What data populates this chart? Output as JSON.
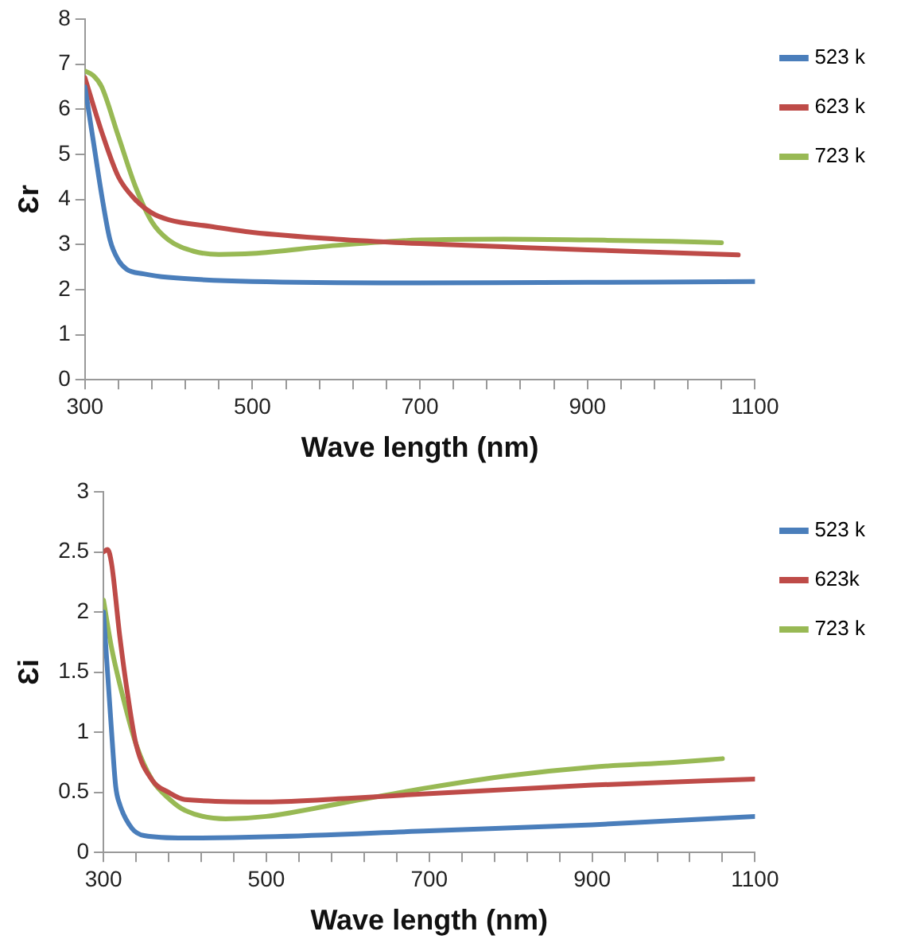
{
  "chart_data": [
    {
      "type": "line",
      "xlabel": "Wave length (nm)",
      "ylabel": "Ɛr",
      "xlim": [
        300,
        1100
      ],
      "xticks": [
        300,
        {
          "value": 340,
          "label": null
        },
        {
          "value": 380,
          "label": null
        },
        {
          "value": 420,
          "label": null
        },
        {
          "value": 460,
          "label": null
        },
        500,
        {
          "value": 540,
          "label": null
        },
        {
          "value": 580,
          "label": null
        },
        {
          "value": 620,
          "label": null
        },
        {
          "value": 660,
          "label": null
        },
        700,
        {
          "value": 740,
          "label": null
        },
        {
          "value": 780,
          "label": null
        },
        {
          "value": 820,
          "label": null
        },
        {
          "value": 860,
          "label": null
        },
        900,
        {
          "value": 940,
          "label": null
        },
        {
          "value": 980,
          "label": null
        },
        {
          "value": 1020,
          "label": null
        },
        {
          "value": 1060,
          "label": null
        },
        1100
      ],
      "ylim": [
        0,
        8
      ],
      "yticks": [
        0,
        1,
        2,
        3,
        4,
        5,
        6,
        7,
        8
      ],
      "grid": false,
      "legend": "right",
      "marker": "none",
      "line_style": "solid",
      "series": [
        {
          "name": "523 k",
          "color": "#4a7ebb",
          "x": [
            300,
            310,
            320,
            330,
            340,
            350,
            370,
            400,
            500,
            700,
            900,
            1100
          ],
          "values": [
            6.5,
            5.3,
            4.1,
            3.1,
            2.65,
            2.45,
            2.35,
            2.27,
            2.18,
            2.15,
            2.16,
            2.18
          ]
        },
        {
          "name": "623 k",
          "color": "#be4b48",
          "x": [
            300,
            320,
            340,
            360,
            380,
            400,
            450,
            500,
            600,
            700,
            800,
            900,
            1000,
            1080
          ],
          "values": [
            6.7,
            5.5,
            4.5,
            4.0,
            3.7,
            3.55,
            3.4,
            3.27,
            3.12,
            3.02,
            2.95,
            2.88,
            2.82,
            2.77
          ]
        },
        {
          "name": "723 k",
          "color": "#98b954",
          "x": [
            300,
            310,
            320,
            340,
            360,
            380,
            400,
            430,
            460,
            500,
            600,
            700,
            800,
            900,
            1000,
            1060
          ],
          "values": [
            6.85,
            6.75,
            6.5,
            5.4,
            4.3,
            3.5,
            3.1,
            2.85,
            2.78,
            2.8,
            2.98,
            3.1,
            3.12,
            3.1,
            3.07,
            3.04
          ]
        }
      ]
    },
    {
      "type": "line",
      "xlabel": "Wave length (nm)",
      "ylabel": "Ɛi",
      "xlim": [
        300,
        1100
      ],
      "xticks": [
        300,
        {
          "value": 340,
          "label": null
        },
        {
          "value": 380,
          "label": null
        },
        {
          "value": 420,
          "label": null
        },
        {
          "value": 460,
          "label": null
        },
        500,
        {
          "value": 540,
          "label": null
        },
        {
          "value": 580,
          "label": null
        },
        {
          "value": 620,
          "label": null
        },
        {
          "value": 660,
          "label": null
        },
        700,
        {
          "value": 740,
          "label": null
        },
        {
          "value": 780,
          "label": null
        },
        {
          "value": 820,
          "label": null
        },
        {
          "value": 860,
          "label": null
        },
        900,
        {
          "value": 940,
          "label": null
        },
        {
          "value": 980,
          "label": null
        },
        {
          "value": 1020,
          "label": null
        },
        {
          "value": 1060,
          "label": null
        },
        1100
      ],
      "ylim": [
        0,
        3
      ],
      "yticks": [
        0,
        0.5,
        1,
        1.5,
        2,
        2.5,
        3
      ],
      "grid": false,
      "legend": "right",
      "marker": "none",
      "line_style": "solid",
      "series": [
        {
          "name": "523 k",
          "color": "#4a7ebb",
          "x": [
            300,
            305,
            310,
            315,
            320,
            335,
            350,
            400,
            500,
            700,
            900,
            1100
          ],
          "values": [
            2.0,
            1.5,
            1.0,
            0.55,
            0.4,
            0.2,
            0.14,
            0.12,
            0.13,
            0.18,
            0.23,
            0.3
          ]
        },
        {
          "name": "623k",
          "color": "#be4b48",
          "x": [
            300,
            305,
            310,
            320,
            330,
            340,
            360,
            380,
            400,
            500,
            600,
            700,
            900,
            1100
          ],
          "values": [
            2.5,
            2.52,
            2.4,
            1.8,
            1.3,
            0.9,
            0.6,
            0.5,
            0.44,
            0.42,
            0.45,
            0.49,
            0.56,
            0.61
          ]
        },
        {
          "name": "723 k",
          "color": "#98b954",
          "x": [
            300,
            310,
            320,
            340,
            360,
            380,
            400,
            450,
            500,
            600,
            700,
            800,
            900,
            1000,
            1060
          ],
          "values": [
            2.1,
            1.7,
            1.4,
            0.9,
            0.6,
            0.45,
            0.35,
            0.28,
            0.3,
            0.42,
            0.54,
            0.64,
            0.71,
            0.75,
            0.78
          ]
        }
      ]
    }
  ]
}
